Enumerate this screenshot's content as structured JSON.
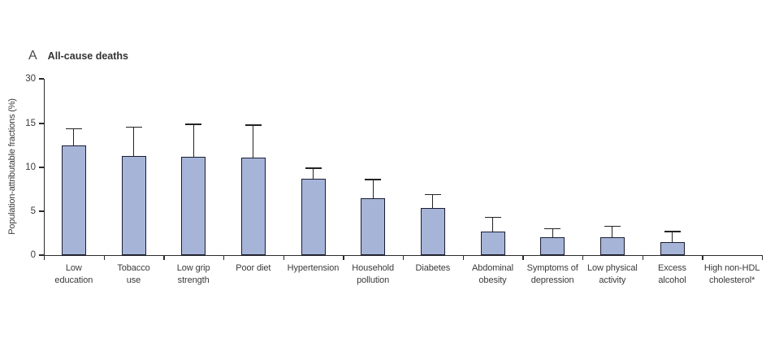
{
  "figure": {
    "panel_letter": "A",
    "title": "All-cause deaths",
    "y_axis_label": "Population-attributable fractions (%)"
  },
  "chart_data": {
    "type": "bar",
    "title": "A  All-cause deaths",
    "xlabel": "",
    "ylabel": "Population-attributable fractions (%)",
    "yticks": [
      0,
      5,
      10,
      15,
      30
    ],
    "ylim": [
      0,
      30
    ],
    "axis_break_note": "y axis compressed above 15; tick 30 drawn one step above 15",
    "grid": false,
    "legend": null,
    "bar_color": "#a6b4d8",
    "bar_border_color": "#1a1d33",
    "error_bar_color": "#232323",
    "axis_color": "#2b2b2b",
    "text_color": "#3a3a3a",
    "categories": [
      "Low education",
      "Tobacco use",
      "Low grip strength",
      "Poor diet",
      "Hypertension",
      "Household pollution",
      "Diabetes",
      "Abdominal obesity",
      "Symptoms of depression",
      "Low physical activity",
      "Excess alcohol",
      "High non-HDL cholesterol*"
    ],
    "category_label_lines": [
      [
        "Low",
        "education"
      ],
      [
        "Tobacco",
        "use"
      ],
      [
        "Low grip",
        "strength"
      ],
      [
        "Poor diet"
      ],
      [
        "Hypertension"
      ],
      [
        "Household",
        "pollution"
      ],
      [
        "Diabetes"
      ],
      [
        "Abdominal",
        "obesity"
      ],
      [
        "Symptoms of",
        "depression"
      ],
      [
        "Low physical",
        "activity"
      ],
      [
        "Excess",
        "alcohol"
      ],
      [
        "High non-HDL",
        "cholesterol*"
      ]
    ],
    "values": [
      12.5,
      11.3,
      11.2,
      11.1,
      8.7,
      6.5,
      5.4,
      2.7,
      2.0,
      2.0,
      1.5,
      0
    ],
    "upper_ci": [
      14.4,
      14.6,
      14.9,
      14.8,
      9.9,
      8.6,
      6.9,
      4.3,
      3.0,
      3.3,
      2.7,
      null
    ]
  }
}
